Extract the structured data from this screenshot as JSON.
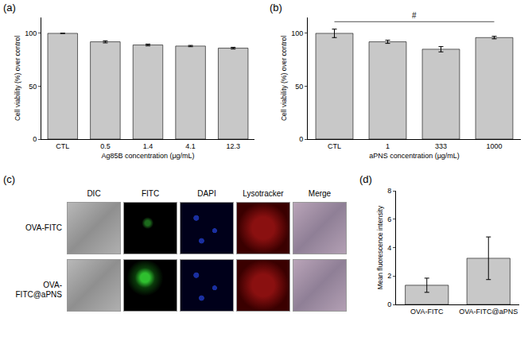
{
  "chart_data": [
    {
      "label": "(a)",
      "type": "bar",
      "categories": [
        "CTL",
        "0.5",
        "1.4",
        "4.1",
        "12.3"
      ],
      "values": [
        100,
        92,
        89,
        88,
        86
      ],
      "errors": [
        0,
        1,
        0.8,
        0.6,
        0.8
      ],
      "color": "#c8c8c8",
      "x_label": "Ag85B concentration (μg/mL)",
      "y_label": "Cell viability (%) over control",
      "ylim": [
        0,
        115
      ],
      "yticks": [
        0,
        50,
        100
      ],
      "grid": false
    },
    {
      "label": "(b)",
      "type": "bar",
      "categories": [
        "CTL",
        "1",
        "333",
        "1000"
      ],
      "values": [
        100,
        92,
        85,
        96
      ],
      "errors": [
        4,
        1.5,
        2.5,
        1.2
      ],
      "color": "#c8c8c8",
      "x_label": "aPNS concentration (μg/mL)",
      "y_label": "Cell viability (%) over control",
      "ylim": [
        0,
        115
      ],
      "yticks": [
        0,
        50,
        100
      ],
      "grid": false,
      "annotations": [
        {
          "text": "#",
          "from": "CTL",
          "to": "1000",
          "y": 111
        }
      ]
    },
    {
      "label": "(d)",
      "type": "bar",
      "categories": [
        "OVA-FITC",
        "OVA-FITC@aPNS"
      ],
      "values": [
        1.35,
        3.25
      ],
      "errors": [
        0.5,
        1.5
      ],
      "color": "#c8c8c8",
      "y_label": "Mean fluorescence intensity",
      "ylim": [
        0,
        8
      ],
      "yticks": [
        0,
        2,
        4,
        6,
        8
      ],
      "grid": false
    }
  ],
  "image_panel": {
    "label": "(c)",
    "columns": [
      "DIC",
      "FITC",
      "DAPI",
      "Lysotracker",
      "Merge"
    ],
    "rows": [
      "OVA-FITC",
      "OVA-FITC@aPNS"
    ]
  }
}
